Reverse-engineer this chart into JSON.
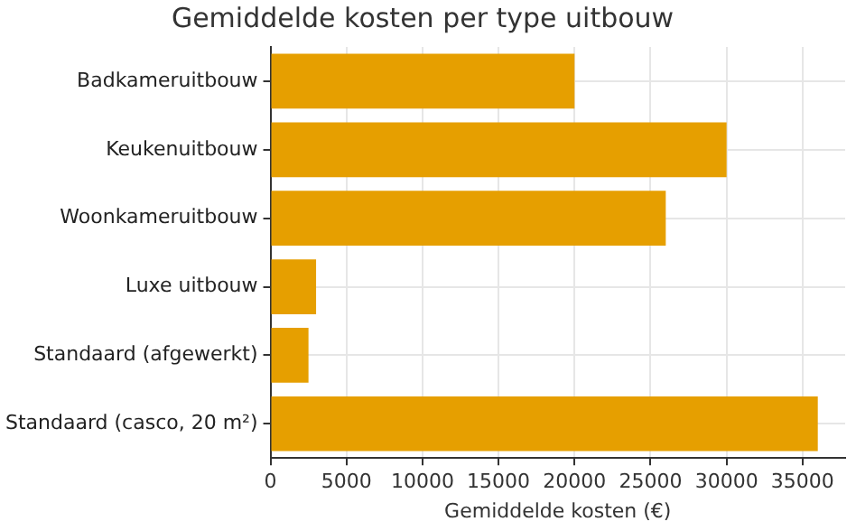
{
  "chart_data": {
    "type": "bar",
    "orientation": "horizontal",
    "title": "Gemiddelde kosten per type uitbouw",
    "xlabel": "Gemiddelde kosten (€)",
    "categories": [
      "Badkameruitbouw",
      "Keukenuitbouw",
      "Woonkameruitbouw",
      "Luxe uitbouw",
      "Standaard (afgewerkt)",
      "Standaard (casco, 20 m²)"
    ],
    "values": [
      20000,
      30000,
      26000,
      3000,
      2500,
      36000
    ],
    "color": "#e69f00",
    "xlim": [
      0,
      37800
    ],
    "xticks": [
      0,
      5000,
      10000,
      15000,
      20000,
      25000,
      30000,
      35000
    ],
    "grid": true
  }
}
